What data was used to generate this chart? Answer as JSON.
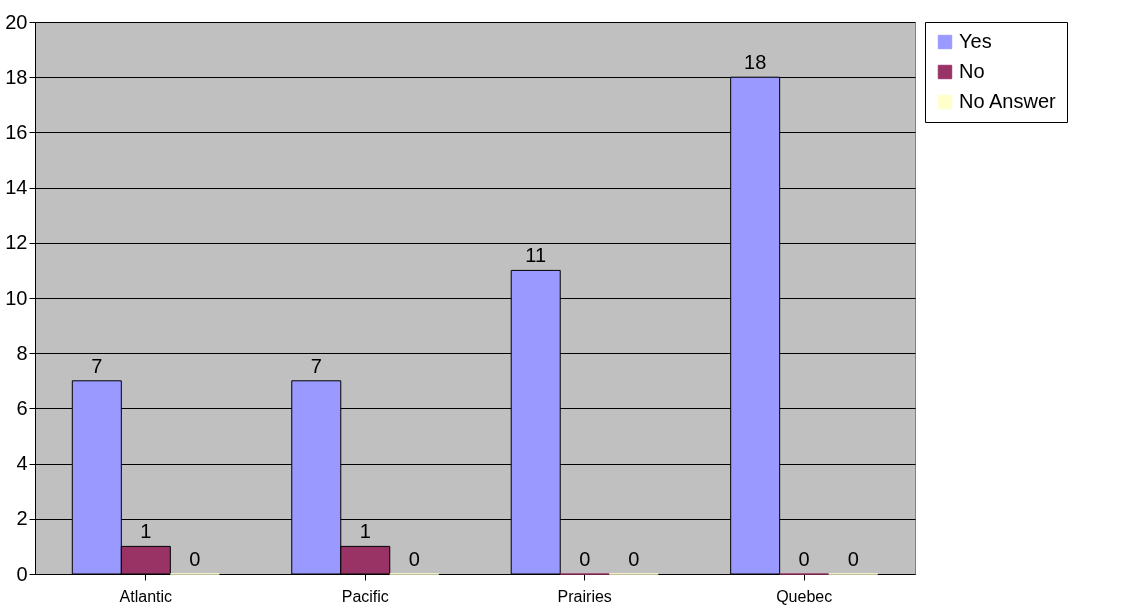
{
  "chart_data": {
    "type": "bar",
    "categories": [
      "Atlantic",
      "Pacific",
      "Prairies",
      "Quebec"
    ],
    "series": [
      {
        "name": "Yes",
        "color": "#9999ff",
        "values": [
          7,
          7,
          11,
          18
        ]
      },
      {
        "name": "No",
        "color": "#993366",
        "values": [
          1,
          1,
          0,
          0
        ]
      },
      {
        "name": "No Answer",
        "color": "#ffffcc",
        "values": [
          0,
          0,
          0,
          0
        ]
      }
    ],
    "ylim": [
      0,
      20
    ],
    "yticks": [
      0,
      2,
      4,
      6,
      8,
      10,
      12,
      14,
      16,
      18,
      20
    ],
    "grid": "y",
    "legend": "right",
    "data_labels": true
  }
}
